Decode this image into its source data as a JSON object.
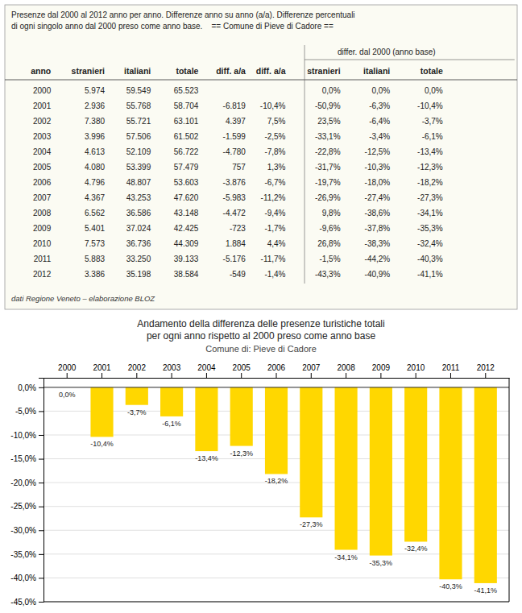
{
  "chart_data": [
    {
      "type": "table",
      "title": [
        "Presenze dal 2000 al 2012 anno per anno. Differenze anno su anno (a/a). Differenze percentuali",
        "di ogni singolo anno dal 2000 preso come anno base.    == Comune di Pieve di Cadore =="
      ],
      "subtitle": "differ. dal 2000 (anno base)",
      "columns": [
        "anno",
        "stranieri",
        "italiani",
        "totale",
        "diff. a/a",
        "diff. a/a",
        "stranieri",
        "italiani",
        "totale"
      ],
      "rows": [
        [
          "2000",
          "5.974",
          "59.549",
          "65.523",
          null,
          null,
          "0,0%",
          "0,0%",
          "0,0%"
        ],
        [
          "2001",
          "2.936",
          "55.768",
          "58.704",
          "-6.819",
          "-10,4%",
          "-50,9%",
          "-6,3%",
          "-10,4%"
        ],
        [
          "2002",
          "7.380",
          "55.721",
          "63.101",
          "4.397",
          "7,5%",
          "23,5%",
          "-6,4%",
          "-3,7%"
        ],
        [
          "2003",
          "3.996",
          "57.506",
          "61.502",
          "-1.599",
          "-2,5%",
          "-33,1%",
          "-3,4%",
          "-6,1%"
        ],
        [
          "2004",
          "4.613",
          "52.109",
          "56.722",
          "-4.780",
          "-7,8%",
          "-22,8%",
          "-12,5%",
          "-13,4%"
        ],
        [
          "2005",
          "4.080",
          "53.399",
          "57.479",
          "757",
          "1,3%",
          "-31,7%",
          "-10,3%",
          "-12,3%"
        ],
        [
          "2006",
          "4.796",
          "48.807",
          "53.603",
          "-3.876",
          "-6,7%",
          "-19,7%",
          "-18,0%",
          "-18,2%"
        ],
        [
          "2007",
          "4.367",
          "43.253",
          "47.620",
          "-5.983",
          "-11,2%",
          "-26,9%",
          "-27,4%",
          "-27,3%"
        ],
        [
          "2008",
          "6.562",
          "36.586",
          "43.148",
          "-4.472",
          "-9,4%",
          "9,8%",
          "-38,6%",
          "-34,1%"
        ],
        [
          "2009",
          "5.401",
          "37.024",
          "42.425",
          "-723",
          "-1,7%",
          "-9,6%",
          "-37,8%",
          "-35,3%"
        ],
        [
          "2010",
          "7.573",
          "36.736",
          "44.309",
          "1.884",
          "4,4%",
          "26,8%",
          "-38,3%",
          "-32,4%"
        ],
        [
          "2011",
          "5.883",
          "33.250",
          "39.133",
          "-5.176",
          "-11,7%",
          "-1,5%",
          "-44,2%",
          "-40,3%"
        ],
        [
          "2012",
          "3.386",
          "35.198",
          "38.584",
          "-549",
          "-1,4%",
          "-43,3%",
          "-40,9%",
          "-41,1%"
        ]
      ],
      "annotations": [
        "dati Regione Veneto – elaborazione BLOZ"
      ]
    },
    {
      "type": "bar",
      "title": [
        "Andamento della differenza delle presenze turistiche totali",
        "per ogni anno rispetto al 2000 preso come anno base"
      ],
      "subtitle": "Comune di: Pieve di Cadore",
      "categories": [
        "2000",
        "2001",
        "2002",
        "2003",
        "2004",
        "2005",
        "2006",
        "2007",
        "2008",
        "2009",
        "2010",
        "2011",
        "2012"
      ],
      "values": [
        0.0,
        -10.4,
        -3.7,
        -6.1,
        -13.4,
        -12.3,
        -18.2,
        -27.3,
        -34.1,
        -35.3,
        -32.4,
        -40.3,
        -41.1
      ],
      "value_labels": [
        "0,0%",
        "-10,4%",
        "-3,7%",
        "-6,1%",
        "-13,4%",
        "-12,3%",
        "-18,2%",
        "-27,3%",
        "-34,1%",
        "-35,3%",
        "-32,4%",
        "-40,3%",
        "-41,1%"
      ],
      "data_labels": true,
      "color": "#FFD700",
      "ylim": [
        -45.0,
        2.0
      ],
      "yticks": [
        {
          "value": 0.0,
          "label": "0,0%"
        },
        {
          "value": -5.0,
          "label": "-5,0%"
        },
        {
          "value": -10.0,
          "label": "-10,0%"
        },
        {
          "value": -15.0,
          "label": "-15,0%"
        },
        {
          "value": -20.0,
          "label": "-20,0%"
        },
        {
          "value": -25.0,
          "label": "-25,0%"
        },
        {
          "value": -30.0,
          "label": "-30,0%"
        },
        {
          "value": -35.0,
          "label": "-35,0%"
        },
        {
          "value": -40.0,
          "label": "-40,0%"
        },
        {
          "value": -45.0,
          "label": "-45,0%"
        }
      ],
      "grid": true
    }
  ]
}
